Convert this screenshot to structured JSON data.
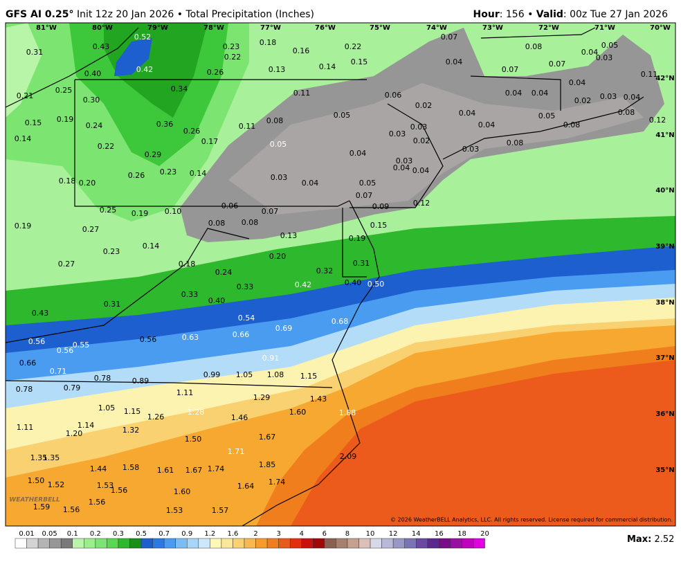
{
  "header": {
    "model": "GFS AI 0.25°",
    "description": "Init 12z 20 Jan 2026 • Total Precipitation (Inches)",
    "hour_label": "Hour",
    "hour": ": 156 • ",
    "valid_label": "Valid",
    "valid": ": 00z Tue 27 Jan 2026"
  },
  "longitudes": [
    "81°W",
    "80°W",
    "79°W",
    "78°W",
    "77°W",
    "76°W",
    "75°W",
    "74°W",
    "73°W",
    "72°W",
    "71°W",
    "70°W"
  ],
  "latitudes": [
    "42°N",
    "41°N",
    "40°N",
    "39°N",
    "38°N",
    "37°N",
    "36°N",
    "35°N"
  ],
  "map_labels": [
    "0.52",
    "0.43",
    "0.31",
    "0.23",
    "0.18",
    "0.16",
    "0.22",
    "0.07",
    "0.08",
    "0.05",
    "0.04",
    "0.03",
    "0.22",
    "0.15",
    "0.04",
    "0.07",
    "0.42",
    "0.40",
    "0.26",
    "0.13",
    "0.14",
    "0.07",
    "0.11",
    "0.34",
    "0.25",
    "0.21",
    "0.11",
    "0.06",
    "0.04",
    "0.04",
    "0.04",
    "0.30",
    "0.02",
    "0.02",
    "0.03",
    "0.04",
    "0.19",
    "0.15",
    "0.24",
    "0.36",
    "0.26",
    "0.11",
    "0.08",
    "0.05",
    "0.04",
    "0.05",
    "0.08",
    "0.12",
    "0.04",
    "0.08",
    "0.03",
    "0.03",
    "0.14",
    "0.17",
    "0.05",
    "0.02",
    "0.08",
    "0.22",
    "0.03",
    "0.29",
    "0.04",
    "0.03",
    "0.04",
    "0.04",
    "0.23",
    "0.26",
    "0.14",
    "0.03",
    "0.04",
    "0.05",
    "0.18",
    "0.20",
    "0.07",
    "0.09",
    "0.12",
    "0.06",
    "0.25",
    "0.19",
    "0.10",
    "0.07",
    "0.08",
    "0.08",
    "0.15",
    "0.19",
    "0.27",
    "0.13",
    "0.19",
    "0.14",
    "0.23",
    "0.20",
    "0.18",
    "0.27",
    "0.31",
    "0.24",
    "0.32",
    "0.40",
    "0.50",
    "0.33",
    "0.42",
    "0.33",
    "0.40",
    "0.31",
    "0.43",
    "0.54",
    "0.68",
    "0.69",
    "0.66",
    "0.56",
    "0.56",
    "0.63",
    "0.55",
    "0.56",
    "0.91",
    "0.66",
    "0.71",
    "0.78",
    "0.89",
    "0.99",
    "1.05",
    "1.08",
    "1.15",
    "0.78",
    "0.79",
    "1.11",
    "1.29",
    "1.43",
    "1.05",
    "1.15",
    "1.28",
    "1.60",
    "1.88",
    "1.26",
    "1.46",
    "1.14",
    "1.11",
    "1.32",
    "1.20",
    "1.50",
    "1.67",
    "1.71",
    "2.09",
    "1.35",
    "1.35",
    "1.44",
    "1.58",
    "1.61",
    "1.67",
    "1.74",
    "1.85",
    "1.50",
    "1.74",
    "1.52",
    "1.53",
    "1.56",
    "1.64",
    "1.60",
    "1.56",
    "1.59",
    "1.56",
    "1.53",
    "1.57"
  ],
  "colorbar": {
    "labels": [
      "0.01",
      "0.05",
      "0.1",
      "0.2",
      "0.3",
      "0.5",
      "0.7",
      "0.9",
      "1.2",
      "1.6",
      "2",
      "3",
      "4",
      "6",
      "8",
      "10",
      "12",
      "14",
      "16",
      "18",
      "20"
    ],
    "colors": [
      "#ffffff",
      "#d4d4d4",
      "#b4b4b4",
      "#969696",
      "#7a7a7a",
      "#b8f5a8",
      "#9aee8c",
      "#7ce470",
      "#5ad852",
      "#2db82d",
      "#189018",
      "#1e5fd0",
      "#2a7ae6",
      "#4a9cf0",
      "#7bbcf5",
      "#a6d6f8",
      "#cce8fa",
      "#fdf7b8",
      "#fbe79a",
      "#f9d170",
      "#f7b850",
      "#f59c2a",
      "#f07e1c",
      "#e85a18",
      "#e03010",
      "#c81010",
      "#a00808",
      "#8a6050",
      "#a88070",
      "#c4a090",
      "#dcc0b8",
      "#d8d8e8",
      "#b8b8d8",
      "#9898c8",
      "#7a74b4",
      "#6a4aa0",
      "#5a2890",
      "#7a0a8a",
      "#9a10a0",
      "#c000c0",
      "#e000e0"
    ]
  },
  "max_label": "Max:",
  "max_value": "2.52",
  "logo": "WEATHERBELL",
  "copyright": "© 2026 WeatherBELL Analytics, LLC. All rights reserved. License required for commercial distribution."
}
